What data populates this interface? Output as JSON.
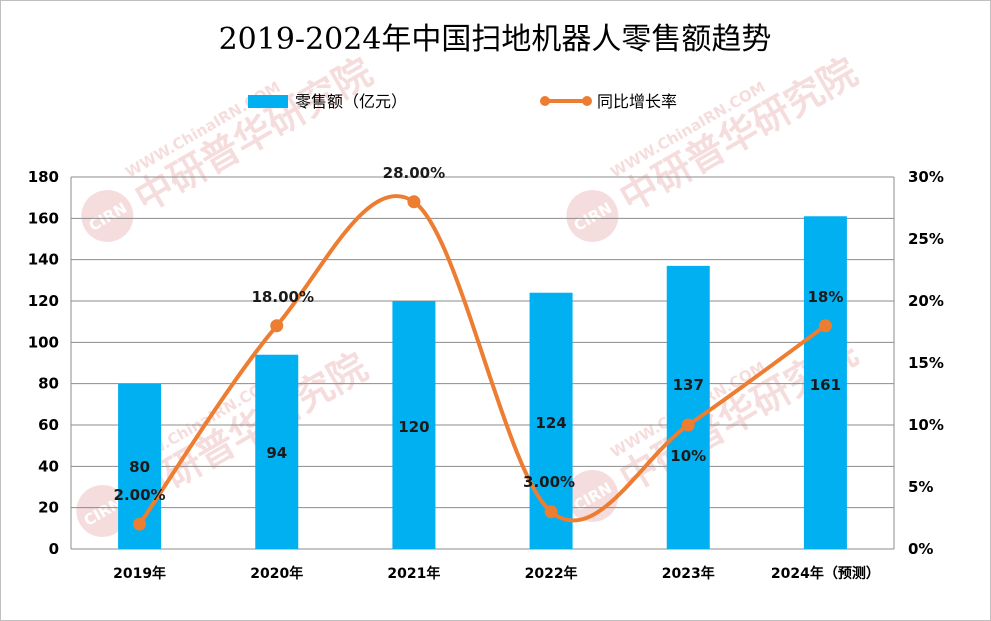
{
  "chart_data": {
    "type": "bar+line",
    "title": "2019-2024年中国扫地机器人零售额趋势",
    "categories": [
      "2019年",
      "2020年",
      "2021年",
      "2022年",
      "2023年",
      "2024年（预测）"
    ],
    "series": [
      {
        "name": "零售额（亿元）",
        "type": "bar",
        "axis": "left",
        "color": "#00b0f0",
        "values": [
          80,
          94,
          120,
          124,
          137,
          161
        ],
        "labels": [
          "80",
          "94",
          "120",
          "124",
          "137",
          "161"
        ]
      },
      {
        "name": "同比增长率",
        "type": "line",
        "axis": "right",
        "color": "#ed7d31",
        "values": [
          2,
          18,
          28,
          3,
          10,
          18
        ],
        "labels": [
          "2.00%",
          "18.00%",
          "28.00%",
          "3.00%",
          "10%",
          "18%"
        ]
      }
    ],
    "y_left": {
      "min": 0,
      "max": 180,
      "ticks": [
        "0",
        "20",
        "40",
        "60",
        "80",
        "100",
        "120",
        "140",
        "160",
        "180"
      ]
    },
    "y_right": {
      "min": 0,
      "max": 30,
      "ticks": [
        "0%",
        "5%",
        "10%",
        "15%",
        "20%",
        "25%",
        "30%"
      ]
    },
    "grid": true,
    "legend_position": "top"
  },
  "watermark": {
    "url_text": "WWW.ChinaIRN.COM",
    "org_text": "中研普华研究院",
    "logo_text": "CIRN"
  }
}
